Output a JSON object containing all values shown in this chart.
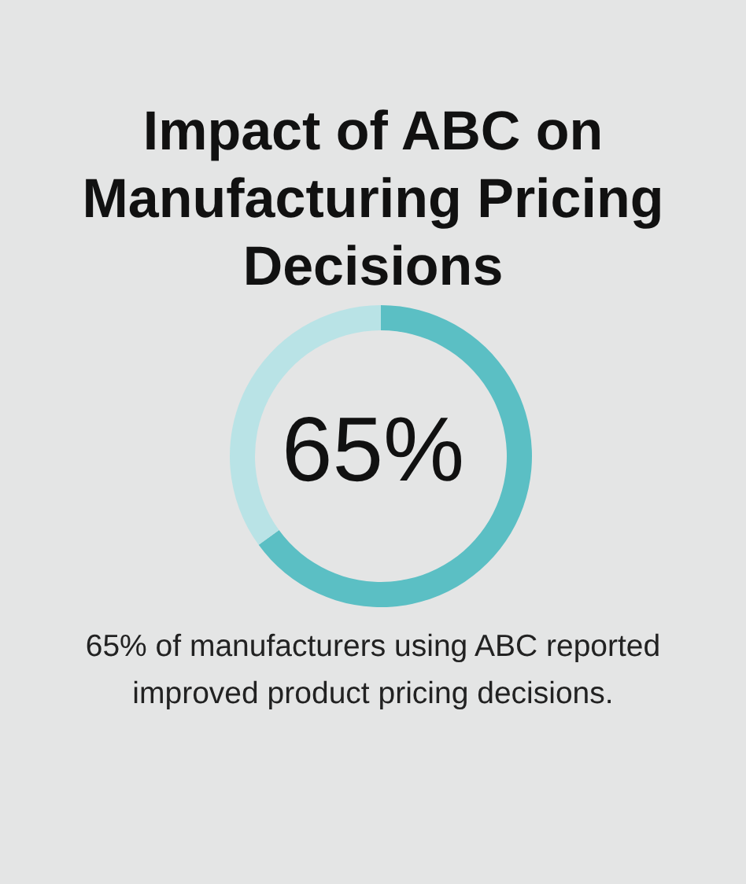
{
  "chart_data": {
    "type": "donut",
    "title": "Impact of ABC on Manufacturing Pricing Decisions",
    "categories": [
      null,
      null
    ],
    "values": [
      65,
      35
    ],
    "colors": [
      "#5bbfc4",
      "#b9e3e6"
    ],
    "legend": false,
    "annotations": [
      "65%",
      "65% of manufacturers using ABC reported improved product pricing decisions."
    ]
  }
}
